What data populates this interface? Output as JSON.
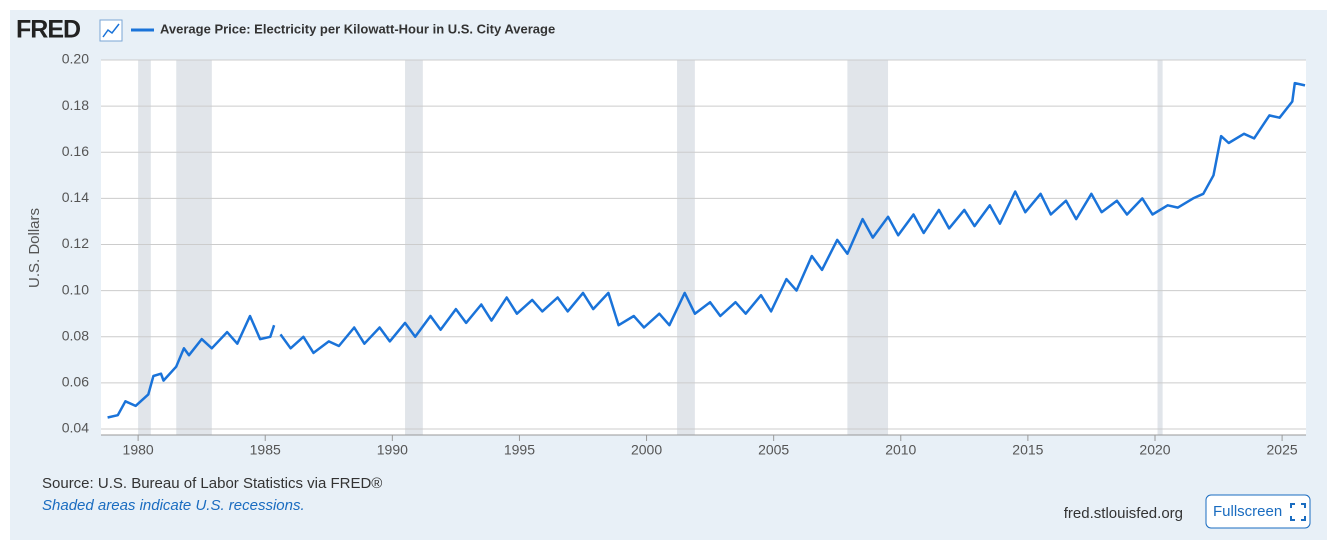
{
  "logo": "FRED",
  "source": "Source: U.S. Bureau of Labor Statistics via FRED®",
  "note": "Shaded areas indicate U.S. recessions.",
  "site": "fred.stlouisfed.org",
  "button": "Fullscreen",
  "chart_data": {
    "type": "line",
    "ylabel": "U.S. Dollars",
    "xlim": [
      1978.54,
      2025.94
    ],
    "xticks": [
      1980,
      1985,
      1990,
      1995,
      2000,
      2005,
      2010,
      2015,
      2020,
      2025
    ],
    "ylim": [
      0.0374,
      0.2
    ],
    "yticks": [
      0.04,
      0.06,
      0.08,
      {
        "value": 0.1,
        "label": "0.10"
      },
      0.12,
      0.14,
      0.16,
      0.18,
      {
        "value": 0.2,
        "label": "0.20"
      }
    ],
    "grid": true,
    "recession_color": "#e1e5ea",
    "recessions": [
      [
        1980.0,
        1980.5
      ],
      [
        1981.5,
        1982.9
      ],
      [
        1990.5,
        1991.2
      ],
      [
        2001.2,
        2001.9
      ],
      [
        2007.9,
        2009.5
      ],
      [
        2020.1,
        2020.3
      ]
    ],
    "series": [
      {
        "name": "Average Price: Electricity per Kilowatt-Hour in U.S. City Average",
        "color": "#1a73d9",
        "x": [
          1978.8,
          1979.2,
          1979.5,
          1979.9,
          1980.4,
          1980.6,
          1980.9,
          1981.0,
          1981.5,
          1981.8,
          1982.0,
          1982.5,
          1982.9,
          1983.5,
          1983.9,
          1984.4,
          1984.8,
          1985.2,
          1985.35,
          1985.45,
          1985.6,
          1986.0,
          1986.5,
          1986.9,
          1987.5,
          1987.9,
          1988.5,
          1988.9,
          1989.5,
          1989.9,
          1990.5,
          1990.9,
          1991.5,
          1991.9,
          1992.5,
          1992.9,
          1993.5,
          1993.9,
          1994.5,
          1994.9,
          1995.5,
          1995.9,
          1996.5,
          1996.9,
          1997.5,
          1997.9,
          1998.5,
          1998.9,
          1999.5,
          1999.9,
          2000.5,
          2000.9,
          2001.5,
          2001.9,
          2002.5,
          2002.9,
          2003.5,
          2003.9,
          2004.5,
          2004.9,
          2005.5,
          2005.9,
          2006.5,
          2006.9,
          2007.5,
          2007.9,
          2008.5,
          2008.9,
          2009.5,
          2009.9,
          2010.5,
          2010.9,
          2011.5,
          2011.9,
          2012.5,
          2012.9,
          2013.5,
          2013.9,
          2014.5,
          2014.9,
          2015.5,
          2015.9,
          2016.5,
          2016.9,
          2017.5,
          2017.9,
          2018.5,
          2018.9,
          2019.5,
          2019.9,
          2020.5,
          2020.9,
          2021.5,
          2021.9,
          2022.3,
          2022.6,
          2022.9,
          2023.5,
          2023.9,
          2024.5,
          2024.9,
          2025.4,
          2025.5,
          2025.9
        ],
        "values": [
          0.045,
          0.046,
          0.052,
          0.05,
          0.055,
          0.063,
          0.064,
          0.061,
          0.067,
          0.075,
          0.072,
          0.079,
          0.075,
          0.082,
          0.077,
          0.089,
          0.079,
          0.08,
          0.085,
          null,
          0.081,
          0.075,
          0.08,
          0.073,
          0.078,
          0.076,
          0.084,
          0.077,
          0.084,
          0.078,
          0.086,
          0.08,
          0.089,
          0.083,
          0.092,
          0.086,
          0.094,
          0.087,
          0.097,
          0.09,
          0.096,
          0.091,
          0.097,
          0.091,
          0.099,
          0.092,
          0.099,
          0.085,
          0.089,
          0.084,
          0.09,
          0.085,
          0.099,
          0.09,
          0.095,
          0.089,
          0.095,
          0.09,
          0.098,
          0.091,
          0.105,
          0.1,
          0.115,
          0.109,
          0.122,
          0.116,
          0.131,
          0.123,
          0.132,
          0.124,
          0.133,
          0.125,
          0.135,
          0.127,
          0.135,
          0.128,
          0.137,
          0.129,
          0.143,
          0.134,
          0.142,
          0.133,
          0.139,
          0.131,
          0.142,
          0.134,
          0.139,
          0.133,
          0.14,
          0.133,
          0.137,
          0.136,
          0.14,
          0.142,
          0.15,
          0.167,
          0.164,
          0.168,
          0.166,
          0.176,
          0.175,
          0.182,
          0.19,
          0.189
        ]
      }
    ]
  }
}
